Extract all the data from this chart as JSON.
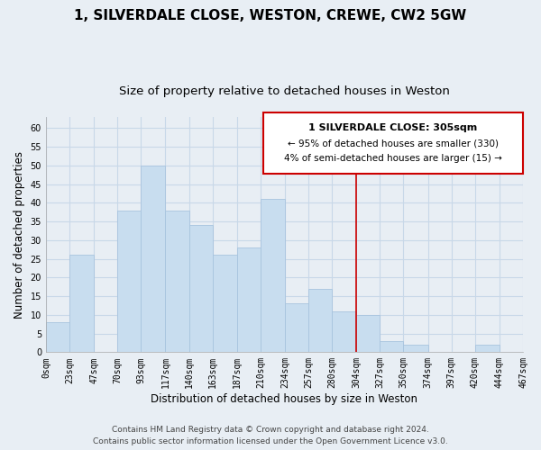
{
  "title": "1, SILVERDALE CLOSE, WESTON, CREWE, CW2 5GW",
  "subtitle": "Size of property relative to detached houses in Weston",
  "xlabel": "Distribution of detached houses by size in Weston",
  "ylabel": "Number of detached properties",
  "bar_edges": [
    0,
    23,
    47,
    70,
    93,
    117,
    140,
    163,
    187,
    210,
    234,
    257,
    280,
    304,
    327,
    350,
    374,
    397,
    420,
    444,
    467
  ],
  "bar_heights": [
    8,
    26,
    0,
    38,
    50,
    38,
    34,
    26,
    28,
    41,
    13,
    17,
    11,
    10,
    3,
    2,
    0,
    0,
    2,
    0
  ],
  "tick_labels": [
    "0sqm",
    "23sqm",
    "47sqm",
    "70sqm",
    "93sqm",
    "117sqm",
    "140sqm",
    "163sqm",
    "187sqm",
    "210sqm",
    "234sqm",
    "257sqm",
    "280sqm",
    "304sqm",
    "327sqm",
    "350sqm",
    "374sqm",
    "397sqm",
    "420sqm",
    "444sqm",
    "467sqm"
  ],
  "bar_color": "#c8ddef",
  "bar_edge_color": "#a8c4de",
  "property_line_x": 304,
  "ylim": [
    0,
    63
  ],
  "yticks": [
    0,
    5,
    10,
    15,
    20,
    25,
    30,
    35,
    40,
    45,
    50,
    55,
    60
  ],
  "annotation_title": "1 SILVERDALE CLOSE: 305sqm",
  "annotation_line1": "← 95% of detached houses are smaller (330)",
  "annotation_line2": "4% of semi-detached houses are larger (15) →",
  "annotation_box_color": "#ffffff",
  "annotation_border_color": "#cc0000",
  "footer_line1": "Contains HM Land Registry data © Crown copyright and database right 2024.",
  "footer_line2": "Contains public sector information licensed under the Open Government Licence v3.0.",
  "background_color": "#e8eef4",
  "grid_color": "#c8d8e8",
  "title_fontsize": 11,
  "subtitle_fontsize": 9.5,
  "axis_label_fontsize": 8.5,
  "tick_fontsize": 7,
  "footer_fontsize": 6.5,
  "ann_title_fontsize": 8,
  "ann_text_fontsize": 7.5
}
